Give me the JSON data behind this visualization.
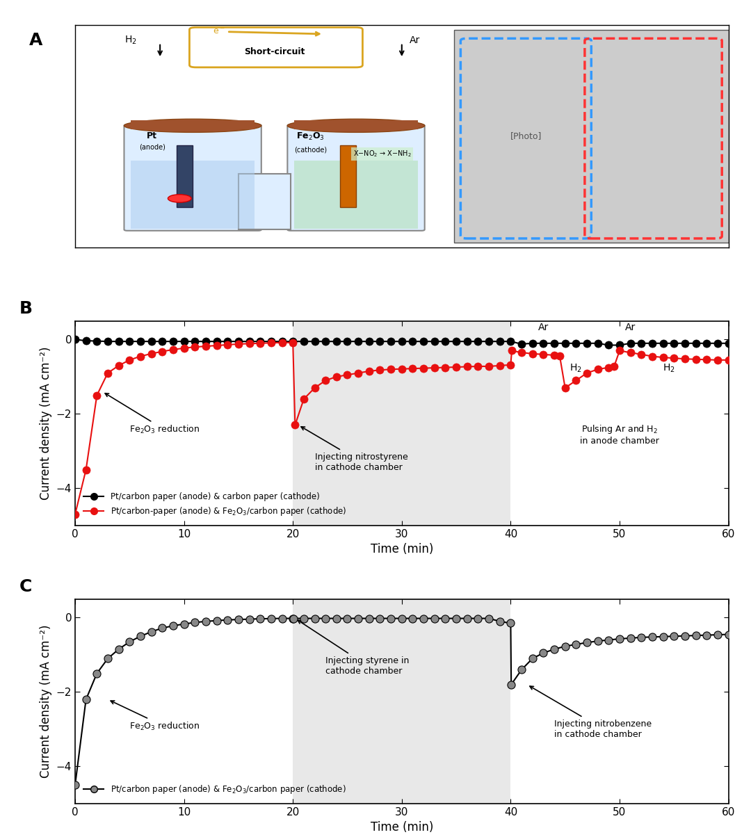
{
  "panel_B": {
    "black_x": [
      0,
      1,
      2,
      3,
      4,
      5,
      6,
      7,
      8,
      9,
      10,
      11,
      12,
      13,
      14,
      15,
      16,
      17,
      18,
      19,
      20,
      21,
      22,
      23,
      24,
      25,
      26,
      27,
      28,
      29,
      30,
      31,
      32,
      33,
      34,
      35,
      36,
      37,
      38,
      39,
      40,
      41,
      42,
      43,
      44,
      45,
      46,
      47,
      48,
      49,
      50,
      51,
      52,
      53,
      54,
      55,
      56,
      57,
      58,
      59,
      60
    ],
    "black_y": [
      0.0,
      -0.03,
      -0.04,
      -0.05,
      -0.05,
      -0.05,
      -0.05,
      -0.05,
      -0.05,
      -0.05,
      -0.05,
      -0.05,
      -0.05,
      -0.05,
      -0.05,
      -0.05,
      -0.05,
      -0.05,
      -0.05,
      -0.05,
      -0.05,
      -0.05,
      -0.05,
      -0.05,
      -0.05,
      -0.05,
      -0.05,
      -0.05,
      -0.05,
      -0.05,
      -0.05,
      -0.05,
      -0.05,
      -0.05,
      -0.05,
      -0.05,
      -0.05,
      -0.05,
      -0.05,
      -0.05,
      -0.05,
      -0.12,
      -0.1,
      -0.1,
      -0.1,
      -0.1,
      -0.1,
      -0.1,
      -0.1,
      -0.15,
      -0.15,
      -0.1,
      -0.1,
      -0.1,
      -0.1,
      -0.1,
      -0.1,
      -0.1,
      -0.1,
      -0.1,
      -0.1
    ],
    "red_x": [
      0,
      1,
      2,
      3,
      4,
      5,
      6,
      7,
      8,
      9,
      10,
      11,
      12,
      13,
      14,
      15,
      16,
      17,
      18,
      19,
      20,
      20.2,
      21,
      22,
      23,
      24,
      25,
      26,
      27,
      28,
      29,
      30,
      31,
      32,
      33,
      34,
      35,
      36,
      37,
      38,
      39,
      40,
      40.1,
      41,
      42,
      43,
      44,
      44.5,
      45,
      46,
      47,
      48,
      49,
      49.5,
      50,
      51,
      52,
      53,
      54,
      55,
      56,
      57,
      58,
      59,
      60
    ],
    "red_y": [
      -4.7,
      -3.5,
      -1.5,
      -0.9,
      -0.7,
      -0.55,
      -0.45,
      -0.38,
      -0.32,
      -0.27,
      -0.23,
      -0.2,
      -0.18,
      -0.16,
      -0.14,
      -0.12,
      -0.11,
      -0.1,
      -0.09,
      -0.08,
      -0.08,
      -2.3,
      -1.6,
      -1.3,
      -1.1,
      -1.0,
      -0.95,
      -0.9,
      -0.85,
      -0.82,
      -0.8,
      -0.79,
      -0.78,
      -0.77,
      -0.76,
      -0.75,
      -0.74,
      -0.73,
      -0.72,
      -0.72,
      -0.7,
      -0.68,
      -0.3,
      -0.35,
      -0.38,
      -0.4,
      -0.42,
      -0.44,
      -1.3,
      -1.1,
      -0.9,
      -0.8,
      -0.75,
      -0.72,
      -0.3,
      -0.35,
      -0.4,
      -0.45,
      -0.48,
      -0.5,
      -0.52,
      -0.53,
      -0.54,
      -0.55,
      -0.55
    ],
    "shaded_region_B": [
      20,
      40
    ],
    "xlim": [
      0,
      60
    ],
    "ylim": [
      -5,
      0.5
    ],
    "yticks": [
      0,
      -2,
      -4
    ],
    "xticks": [
      0,
      10,
      20,
      30,
      40,
      50,
      60
    ],
    "xlabel": "Time (min)",
    "ylabel": "Current density (mA cm⁻²)"
  },
  "panel_C": {
    "black_x": [
      0,
      1,
      2,
      3,
      4,
      5,
      6,
      7,
      8,
      9,
      10,
      11,
      12,
      13,
      14,
      15,
      16,
      17,
      18,
      19,
      20,
      20.05,
      21,
      22,
      23,
      24,
      25,
      26,
      27,
      28,
      29,
      30,
      31,
      32,
      33,
      34,
      35,
      36,
      37,
      38,
      39,
      40,
      40.05,
      41,
      42,
      43,
      44,
      45,
      46,
      47,
      48,
      49,
      50,
      51,
      52,
      53,
      54,
      55,
      56,
      57,
      58,
      59,
      60
    ],
    "black_y": [
      -4.5,
      -2.2,
      -1.5,
      -1.1,
      -0.85,
      -0.65,
      -0.5,
      -0.38,
      -0.28,
      -0.22,
      -0.17,
      -0.13,
      -0.1,
      -0.08,
      -0.06,
      -0.05,
      -0.04,
      -0.03,
      -0.025,
      -0.02,
      -0.02,
      -0.02,
      -0.02,
      -0.02,
      -0.02,
      -0.02,
      -0.02,
      -0.02,
      -0.02,
      -0.02,
      -0.02,
      -0.02,
      -0.02,
      -0.02,
      -0.02,
      -0.02,
      -0.02,
      -0.02,
      -0.02,
      -0.02,
      -0.1,
      -0.15,
      -1.8,
      -1.4,
      -1.1,
      -0.95,
      -0.85,
      -0.77,
      -0.72,
      -0.67,
      -0.63,
      -0.6,
      -0.57,
      -0.55,
      -0.53,
      -0.52,
      -0.51,
      -0.5,
      -0.49,
      -0.48,
      -0.47,
      -0.46,
      -0.45
    ],
    "shaded_region_C": [
      20,
      40
    ],
    "xlim": [
      0,
      60
    ],
    "ylim": [
      -5,
      0.5
    ],
    "yticks": [
      0,
      -2,
      -4
    ],
    "xticks": [
      0,
      10,
      20,
      30,
      40,
      50,
      60
    ],
    "xlabel": "Time (min)",
    "ylabel": "Current density (mA cm⁻²)"
  },
  "colors": {
    "black": "#1a1a1a",
    "red": "#e81010",
    "gray_bg": "#e8e8e8",
    "white": "#ffffff"
  },
  "marker_size": 8,
  "line_width": 1.5
}
